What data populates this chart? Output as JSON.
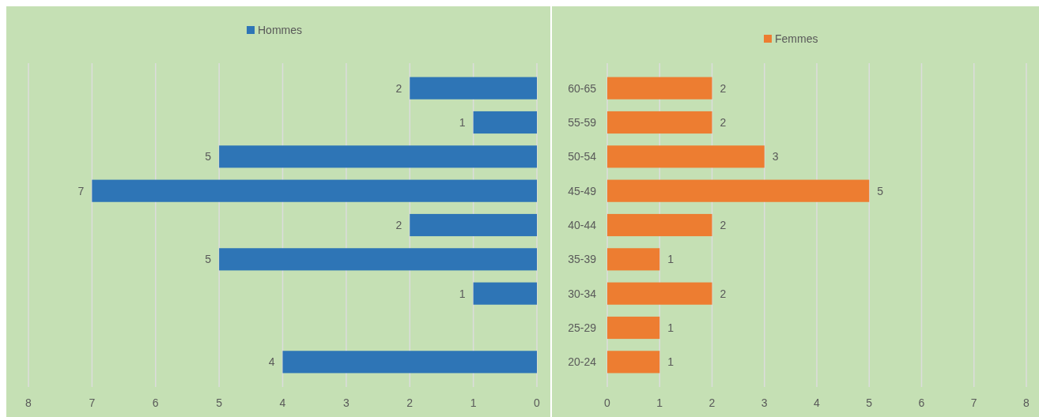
{
  "chart_data": [
    {
      "type": "bar",
      "orientation": "horizontal",
      "categories": [
        null,
        null,
        null,
        null,
        null,
        null,
        null,
        null,
        null
      ],
      "series": [
        {
          "name": "Hommes",
          "color": "#2e75b6",
          "values": [
            2,
            1,
            5,
            7,
            2,
            5,
            1,
            null,
            4
          ]
        }
      ],
      "xlim": [
        8,
        0
      ],
      "xticks": [
        8,
        7,
        6,
        5,
        4,
        3,
        2,
        1,
        0
      ],
      "grid": "x",
      "legend": "top",
      "data_labels": true
    },
    {
      "type": "bar",
      "orientation": "horizontal",
      "categories": [
        "60-65",
        "55-59",
        "50-54",
        "45-49",
        "40-44",
        "35-39",
        "30-34",
        "25-29",
        "20-24"
      ],
      "series": [
        {
          "name": "Femmes",
          "color": "#ed7d31",
          "values": [
            2,
            2,
            3,
            5,
            2,
            1,
            2,
            1,
            1
          ]
        }
      ],
      "xlim": [
        0,
        8
      ],
      "xticks": [
        0,
        1,
        2,
        3,
        4,
        5,
        6,
        7,
        8
      ],
      "grid": "x",
      "legend": "top",
      "data_labels": true
    }
  ]
}
